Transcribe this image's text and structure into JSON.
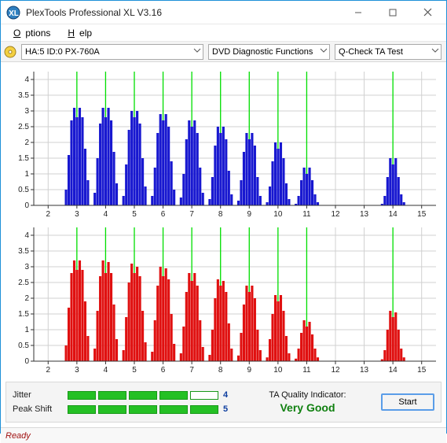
{
  "window": {
    "title": "PlexTools Professional XL V3.16"
  },
  "menu": {
    "options": "Options",
    "help": "Help"
  },
  "toolbar": {
    "drive": "HA:5 ID:0   PX-760A",
    "func": "DVD Diagnostic Functions",
    "test": "Q-Check TA Test"
  },
  "charts": {
    "xlim": [
      1.5,
      15.5
    ],
    "ylim": [
      0,
      4.25
    ],
    "xticks": [
      2,
      3,
      4,
      5,
      6,
      7,
      8,
      9,
      10,
      11,
      12,
      13,
      14,
      15
    ],
    "yticks": [
      0,
      0.5,
      1,
      1.5,
      2,
      2.5,
      3,
      3.5,
      4
    ],
    "grid_color": "#d0d0d0",
    "axis_color": "#333333",
    "bg_color": "#ffffff",
    "tick_label_fontsize": 10,
    "vline_color": "#00e000",
    "vlines": [
      3,
      4,
      5,
      6,
      7,
      8,
      9,
      10,
      11,
      14
    ],
    "top": {
      "bar_color": "#1818d0",
      "groups": [
        {
          "c": 3,
          "v": [
            0.5,
            1.6,
            2.7,
            3.1,
            2.8,
            3.1,
            2.8,
            1.8,
            0.8
          ]
        },
        {
          "c": 4,
          "v": [
            0.4,
            1.5,
            2.6,
            3.1,
            2.8,
            3.1,
            2.7,
            1.7,
            0.7
          ]
        },
        {
          "c": 5,
          "v": [
            0.3,
            1.3,
            2.4,
            3.0,
            2.8,
            3.0,
            2.6,
            1.5,
            0.6
          ]
        },
        {
          "c": 6,
          "v": [
            0.3,
            1.2,
            2.3,
            2.9,
            2.7,
            2.9,
            2.5,
            1.4,
            0.5
          ]
        },
        {
          "c": 7,
          "v": [
            0.25,
            1.0,
            2.1,
            2.7,
            2.5,
            2.7,
            2.3,
            1.2,
            0.4
          ]
        },
        {
          "c": 8,
          "v": [
            0.2,
            0.9,
            1.9,
            2.5,
            2.3,
            2.5,
            2.1,
            1.1,
            0.35
          ]
        },
        {
          "c": 9,
          "v": [
            0.15,
            0.8,
            1.7,
            2.3,
            2.1,
            2.3,
            1.9,
            0.9,
            0.3
          ]
        },
        {
          "c": 10,
          "v": [
            0.1,
            0.6,
            1.4,
            2.0,
            1.8,
            2.0,
            1.5,
            0.7,
            0.2
          ]
        },
        {
          "c": 11,
          "v": [
            0.05,
            0.3,
            0.8,
            1.2,
            1.0,
            1.2,
            0.8,
            0.35,
            0.1
          ]
        },
        {
          "c": 14,
          "v": [
            0.05,
            0.3,
            0.9,
            1.5,
            1.3,
            1.5,
            0.9,
            0.35,
            0.1
          ]
        }
      ]
    },
    "bottom": {
      "bar_color": "#e01010",
      "groups": [
        {
          "c": 3,
          "v": [
            0.5,
            1.7,
            2.8,
            3.2,
            2.9,
            3.2,
            2.9,
            1.9,
            0.8
          ]
        },
        {
          "c": 4,
          "v": [
            0.4,
            1.6,
            2.7,
            3.2,
            2.8,
            3.15,
            2.8,
            1.8,
            0.7
          ]
        },
        {
          "c": 5,
          "v": [
            0.35,
            1.4,
            2.5,
            3.1,
            2.8,
            3.0,
            2.7,
            1.6,
            0.6
          ]
        },
        {
          "c": 6,
          "v": [
            0.3,
            1.3,
            2.4,
            3.0,
            2.7,
            2.95,
            2.6,
            1.5,
            0.55
          ]
        },
        {
          "c": 7,
          "v": [
            0.25,
            1.1,
            2.2,
            2.8,
            2.55,
            2.8,
            2.4,
            1.3,
            0.45
          ]
        },
        {
          "c": 8,
          "v": [
            0.2,
            1.0,
            2.0,
            2.6,
            2.4,
            2.55,
            2.2,
            1.2,
            0.4
          ]
        },
        {
          "c": 9,
          "v": [
            0.18,
            0.9,
            1.8,
            2.4,
            2.2,
            2.4,
            2.0,
            1.0,
            0.35
          ]
        },
        {
          "c": 10,
          "v": [
            0.12,
            0.7,
            1.5,
            2.1,
            1.9,
            2.1,
            1.6,
            0.8,
            0.25
          ]
        },
        {
          "c": 11,
          "v": [
            0.08,
            0.4,
            0.9,
            1.3,
            1.1,
            1.25,
            0.85,
            0.4,
            0.12
          ]
        },
        {
          "c": 14,
          "v": [
            0.06,
            0.35,
            1.0,
            1.6,
            1.4,
            1.55,
            1.0,
            0.4,
            0.12
          ]
        }
      ]
    }
  },
  "status": {
    "jitter_label": "Jitter",
    "jitter_value": "4",
    "jitter_on": 4,
    "peak_label": "Peak Shift",
    "peak_value": "5",
    "peak_on": 5,
    "quality_label": "TA Quality Indicator:",
    "quality_value": "Very Good",
    "start_label": "Start"
  },
  "statusbar": {
    "text": "Ready"
  }
}
